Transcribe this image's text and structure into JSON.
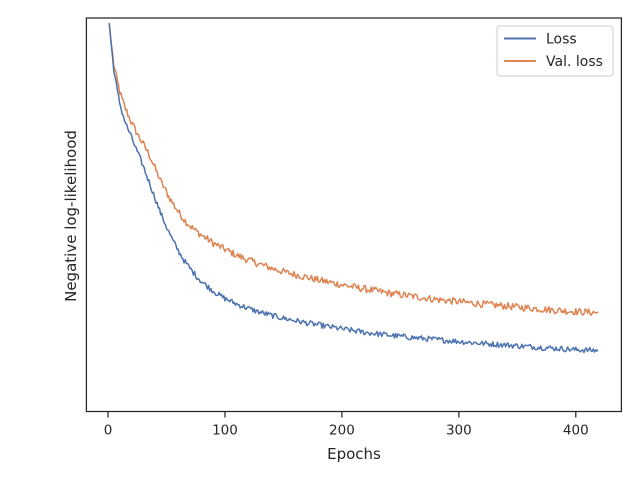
{
  "chart_data": {
    "type": "line",
    "xlabel": "Epochs",
    "ylabel": "Negative log-likelihood",
    "xlim": [
      -18.5,
      439
    ],
    "ylim": [
      0,
      1
    ],
    "x_ticks": [
      0,
      100,
      200,
      300,
      400
    ],
    "y_ticks": [],
    "grid": false,
    "legend_position": "upper right",
    "series": [
      {
        "name": "Loss",
        "color": "#4c72b0",
        "x": [
          1,
          3,
          5,
          8,
          10,
          12,
          15,
          20,
          25,
          30,
          35,
          40,
          45,
          50,
          55,
          60,
          65,
          70,
          75,
          80,
          85,
          90,
          95,
          100,
          110,
          120,
          130,
          140,
          150,
          160,
          170,
          180,
          190,
          200,
          220,
          240,
          260,
          280,
          300,
          320,
          340,
          360,
          380,
          400,
          419
        ],
        "y": [
          0.987,
          0.925,
          0.868,
          0.813,
          0.784,
          0.761,
          0.733,
          0.697,
          0.66,
          0.624,
          0.584,
          0.544,
          0.504,
          0.469,
          0.437,
          0.409,
          0.384,
          0.364,
          0.346,
          0.33,
          0.318,
          0.306,
          0.296,
          0.287,
          0.273,
          0.262,
          0.252,
          0.244,
          0.237,
          0.231,
          0.225,
          0.22,
          0.215,
          0.21,
          0.201,
          0.194,
          0.188,
          0.183,
          0.178,
          0.173,
          0.169,
          0.165,
          0.161,
          0.157,
          0.155
        ],
        "noise": 0.007
      },
      {
        "name": "Val. loss",
        "color": "#dd8452",
        "x": [
          1,
          3,
          5,
          8,
          10,
          12,
          15,
          20,
          25,
          30,
          35,
          40,
          45,
          50,
          55,
          60,
          65,
          70,
          75,
          80,
          85,
          90,
          95,
          100,
          110,
          120,
          130,
          140,
          150,
          160,
          170,
          180,
          190,
          200,
          220,
          240,
          260,
          280,
          300,
          320,
          340,
          360,
          380,
          400,
          419
        ],
        "y": [
          0.987,
          0.93,
          0.88,
          0.838,
          0.813,
          0.793,
          0.769,
          0.735,
          0.706,
          0.68,
          0.654,
          0.62,
          0.586,
          0.557,
          0.531,
          0.508,
          0.488,
          0.472,
          0.459,
          0.448,
          0.438,
          0.428,
          0.42,
          0.412,
          0.397,
          0.385,
          0.374,
          0.364,
          0.355,
          0.348,
          0.341,
          0.334,
          0.328,
          0.322,
          0.311,
          0.301,
          0.293,
          0.285,
          0.279,
          0.273,
          0.268,
          0.263,
          0.258,
          0.254,
          0.251
        ],
        "noise": 0.009
      }
    ]
  }
}
